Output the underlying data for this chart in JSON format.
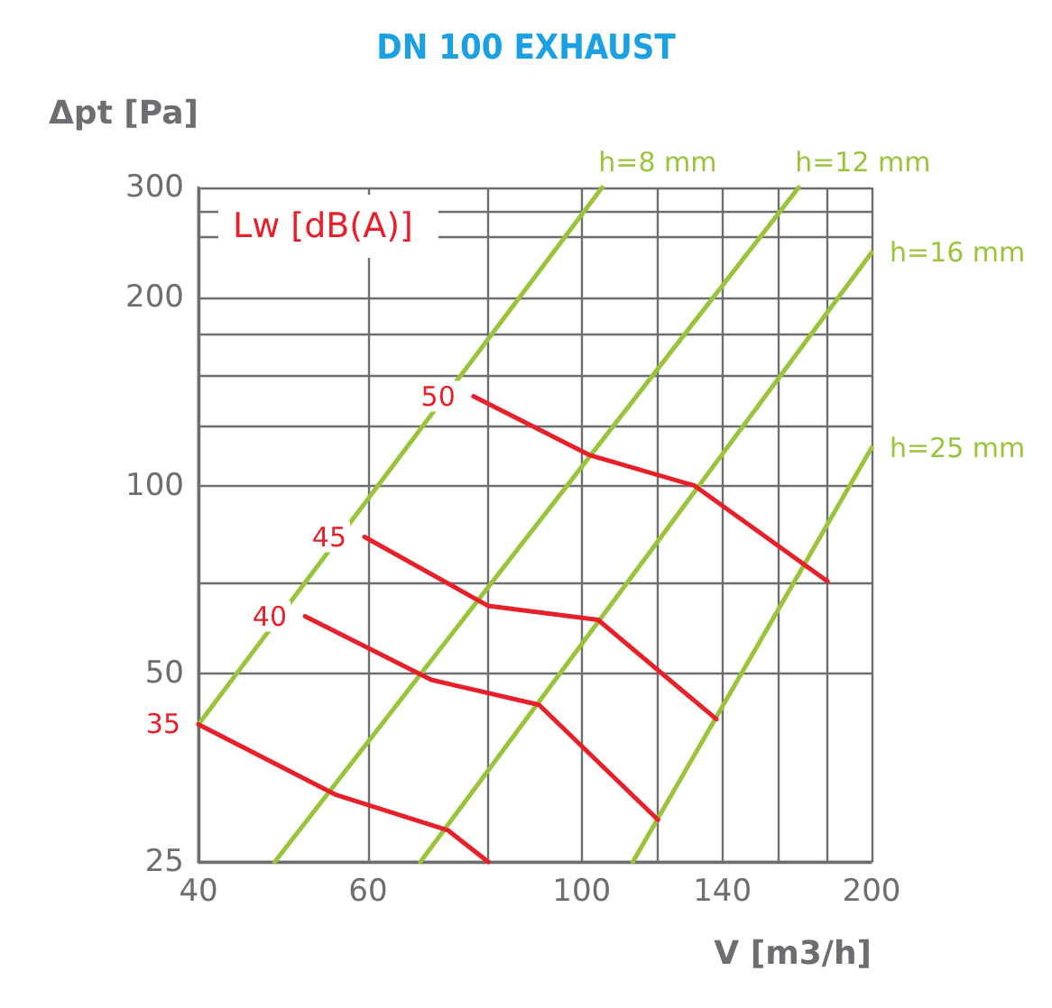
{
  "chart_data": {
    "type": "line",
    "title": "DN 100 EXHAUST",
    "xlabel": "V [m3/h]",
    "ylabel": "Δpt [Pa]",
    "log": "xy",
    "xlim": [
      40,
      200
    ],
    "xticks": [
      40,
      60,
      {
        "value": 80,
        "label": null
      },
      100,
      {
        "value": 120,
        "label": null
      },
      140,
      {
        "value": 160,
        "label": null
      },
      {
        "value": 180,
        "label": null
      },
      200
    ],
    "ylim": [
      25,
      300
    ],
    "yticks": [
      25,
      50,
      {
        "value": 70,
        "label": null
      },
      100,
      {
        "value": 125,
        "label": null
      },
      {
        "value": 150,
        "label": null
      },
      {
        "value": 175,
        "label": null
      },
      200,
      {
        "value": 250,
        "label": null
      },
      {
        "value": 275,
        "label": null
      },
      300
    ],
    "grid": true,
    "legend": false,
    "marker": "none",
    "line_style": "solid",
    "annotations": [
      "Lw [dB(A)]"
    ],
    "series": [
      {
        "name": "h=8 mm",
        "color": "#9ac43c",
        "x": [
          40,
          105
        ],
        "values": [
          41.5,
          300
        ]
      },
      {
        "name": "h=12 mm",
        "color": "#9ac43c",
        "x": [
          48,
          168
        ],
        "values": [
          25,
          300
        ]
      },
      {
        "name": "h=16 mm",
        "color": "#9ac43c",
        "x": [
          68,
          200
        ],
        "values": [
          25,
          236
        ]
      },
      {
        "name": "h=25 mm",
        "color": "#9ac43c",
        "x": [
          113,
          200
        ],
        "values": [
          25,
          115
        ]
      },
      {
        "name": "35",
        "color": "#e8202a",
        "x": [
          40,
          55.6,
          72.6,
          80
        ],
        "values": [
          41.5,
          32,
          28.1,
          25
        ]
      },
      {
        "name": "40",
        "color": "#e8202a",
        "x": [
          51.6,
          69.8,
          90.3,
          120
        ],
        "values": [
          61.8,
          48.9,
          44.6,
          29.2
        ]
      },
      {
        "name": "45",
        "color": "#e8202a",
        "x": [
          59.5,
          80,
          104,
          138
        ],
        "values": [
          82.8,
          64.2,
          61,
          42.3
        ]
      },
      {
        "name": "50",
        "color": "#e8202a",
        "x": [
          77.2,
          101.8,
          131,
          180
        ],
        "values": [
          139,
          112,
          100,
          70.3
        ]
      }
    ]
  }
}
